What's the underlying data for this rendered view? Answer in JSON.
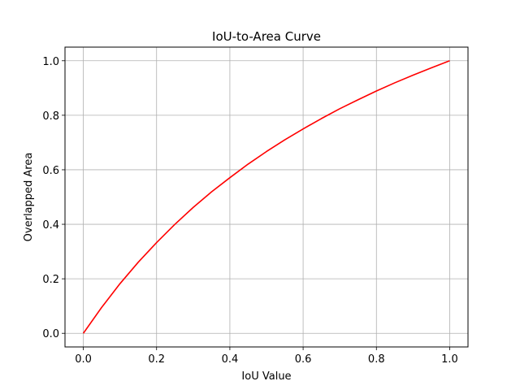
{
  "chart_data": {
    "type": "line",
    "title": "IoU-to-Area Curve",
    "xlabel": "IoU Value",
    "ylabel": "Overlapped Area",
    "xlim": [
      -0.05,
      1.05
    ],
    "ylim": [
      -0.05,
      1.05
    ],
    "xticks": [
      "0.0",
      "0.2",
      "0.4",
      "0.6",
      "0.8",
      "1.0"
    ],
    "yticks": [
      "0.0",
      "0.2",
      "0.4",
      "0.6",
      "0.8",
      "1.0"
    ],
    "grid": true,
    "series": [
      {
        "color": "#ff0000",
        "x": [
          0.0,
          0.05,
          0.1,
          0.15,
          0.2,
          0.25,
          0.3,
          0.35,
          0.4,
          0.45,
          0.5,
          0.55,
          0.6,
          0.65,
          0.7,
          0.75,
          0.8,
          0.85,
          0.9,
          0.95,
          1.0
        ],
        "y": [
          0.0,
          0.095,
          0.182,
          0.261,
          0.333,
          0.4,
          0.462,
          0.519,
          0.571,
          0.621,
          0.667,
          0.71,
          0.75,
          0.788,
          0.824,
          0.857,
          0.889,
          0.919,
          0.947,
          0.974,
          1.0
        ]
      }
    ]
  }
}
